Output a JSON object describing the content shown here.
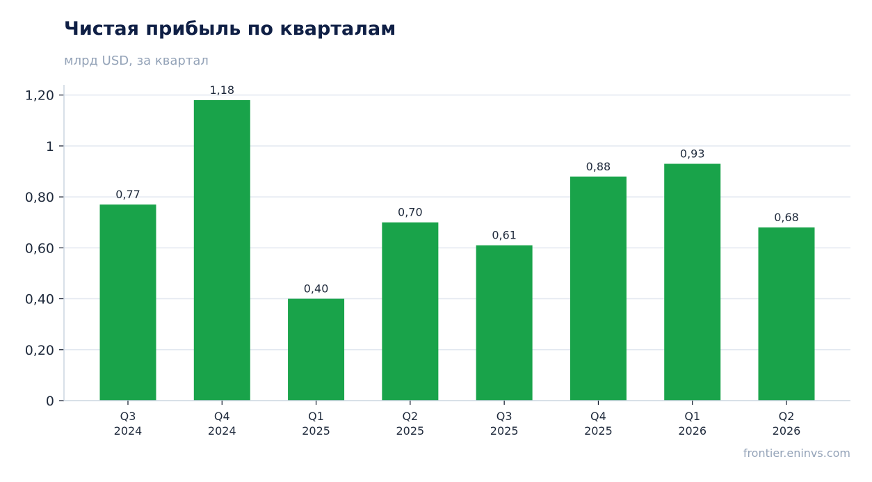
{
  "header": {
    "title": "Чистая прибыль по кварталам",
    "subtitle": "млрд USD, за квартал"
  },
  "footer": {
    "source": "frontier.eninvs.com"
  },
  "colors": {
    "bar": "#19a34a",
    "title": "#0f1f45",
    "muted": "#94a3b8",
    "grid": "#e2e8f0"
  },
  "chart_data": {
    "type": "bar",
    "title": "Чистая прибыль по кварталам",
    "subtitle": "млрд USD, за квартал",
    "categories": [
      [
        "Q3",
        "2024"
      ],
      [
        "Q4",
        "2024"
      ],
      [
        "Q1",
        "2025"
      ],
      [
        "Q2",
        "2025"
      ],
      [
        "Q3",
        "2025"
      ],
      [
        "Q4",
        "2025"
      ],
      [
        "Q1",
        "2026"
      ],
      [
        "Q2",
        "2026"
      ]
    ],
    "values": [
      0.77,
      1.18,
      0.4,
      0.7,
      0.61,
      0.88,
      0.93,
      0.68
    ],
    "data_labels": [
      "0,77",
      "1,18",
      "0,40",
      "0,70",
      "0,61",
      "0,88",
      "0,93",
      "0,68"
    ],
    "ylim": [
      0,
      1.24
    ],
    "yticks": [
      0,
      0.2,
      0.4,
      0.6,
      0.8,
      1.0,
      1.2
    ],
    "ytick_labels": [
      "0",
      "0,20",
      "0,40",
      "0,60",
      "0,80",
      "1",
      "1,20"
    ],
    "grid": true,
    "legend": "none"
  }
}
